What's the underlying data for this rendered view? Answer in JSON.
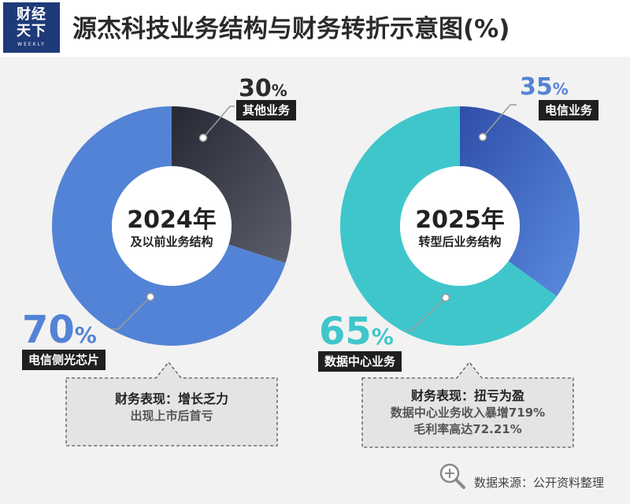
{
  "logo": {
    "line1": "财经",
    "line2": "天下",
    "line3": "WEEKLY"
  },
  "title": "源杰科技业务结构与财务转折示意图(%)",
  "colors": {
    "blue": "#5383d6",
    "dark": "#4c4e5a",
    "teal": "#3fc6cb",
    "logo_bg": "#1e3a78"
  },
  "chart_data": [
    {
      "type": "pie",
      "center_title": "2024年",
      "center_subtitle": "及以前业务结构",
      "slices": [
        {
          "label": "其他业务",
          "value": 30,
          "value_text": "30",
          "unit": "%"
        },
        {
          "label": "电信侧光芯片",
          "value": 70,
          "value_text": "70",
          "unit": "%"
        }
      ]
    },
    {
      "type": "pie",
      "center_title": "2025年",
      "center_subtitle": "转型后业务结构",
      "slices": [
        {
          "label": "电信业务",
          "value": 35,
          "value_text": "35",
          "unit": "%"
        },
        {
          "label": "数据中心业务",
          "value": 65,
          "value_text": "65",
          "unit": "%"
        }
      ]
    }
  ],
  "notes": {
    "left": {
      "head": "财务表现：增长乏力",
      "lines": [
        "出现上市后首亏"
      ]
    },
    "right": {
      "head": "财务表现：扭亏为盈",
      "lines": [
        "数据中心业务收入暴增719%",
        "毛利率高达72.21%"
      ]
    }
  },
  "source": "数据来源：公开资料整理"
}
